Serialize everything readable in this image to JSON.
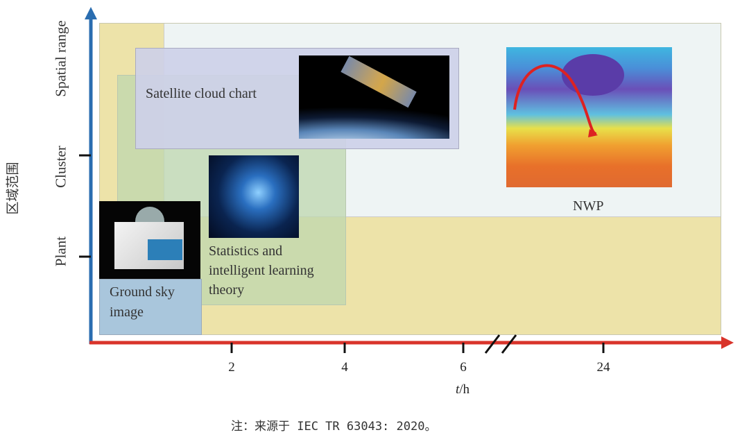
{
  "y_axis": {
    "label": "区域范围",
    "ticks": [
      "Plant",
      "Cluster",
      "Spatial range"
    ],
    "color": "#2a6db0"
  },
  "x_axis": {
    "label_italic": "t",
    "label_unit": "/h",
    "ticks": [
      "2",
      "4",
      "6",
      "24"
    ],
    "color": "#d9342b"
  },
  "regions": {
    "satellite": {
      "label": "Satellite cloud chart",
      "color": "#cfd3e6"
    },
    "statistics": {
      "line1": "Statistics and",
      "line2": "intelligent learning",
      "line3": "theory",
      "color": "#cfe0c3"
    },
    "ground": {
      "line1": "Ground sky",
      "line2": "image",
      "color": "#a9c6dc"
    },
    "nwp": {
      "label": "NWP",
      "color": "#eef4f4"
    },
    "background": {
      "color": "#ede3a9"
    }
  },
  "caption": "注：来源于 IEC TR 63043: 2020。"
}
